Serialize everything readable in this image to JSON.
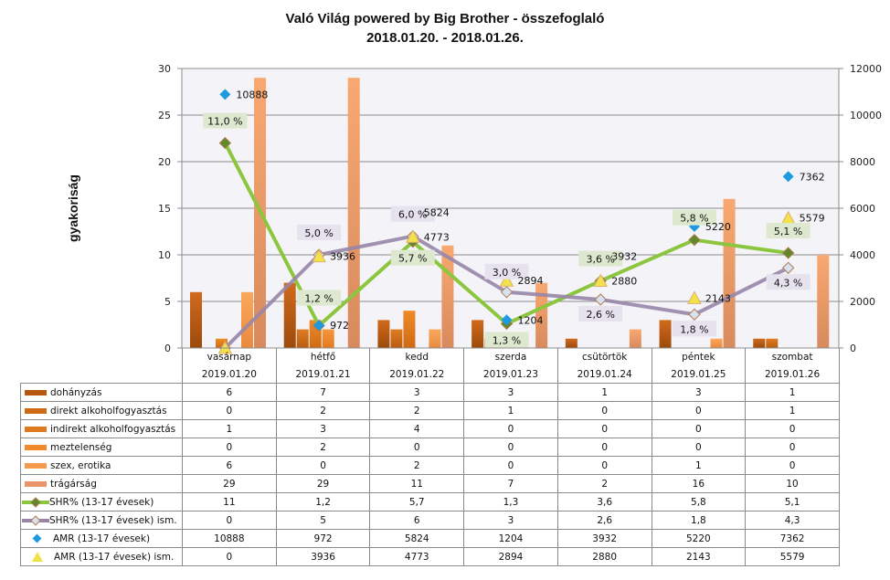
{
  "chart_data": {
    "type": "bar",
    "title": [
      "Való Világ powered by Big Brother - összefoglaló",
      "2018.01.20. - 2018.01.26."
    ],
    "ylabel": "gyakoriság",
    "ylim": [
      0,
      30
    ],
    "y_ticks": [
      0,
      5,
      10,
      15,
      20,
      25,
      30
    ],
    "y2lim": [
      0,
      12000
    ],
    "y2_ticks": [
      0,
      2000,
      4000,
      6000,
      8000,
      10000,
      12000
    ],
    "grid": true,
    "legend": "data-table-bottom",
    "categories": [
      {
        "day": "vasárnap",
        "date": "2019.01.20"
      },
      {
        "day": "hétfő",
        "date": "2019.01.21"
      },
      {
        "day": "kedd",
        "date": "2019.01.22"
      },
      {
        "day": "szerda",
        "date": "2019.01.23"
      },
      {
        "day": "csütörtök",
        "date": "2019.01.24"
      },
      {
        "day": "péntek",
        "date": "2019.01.25"
      },
      {
        "day": "szombat",
        "date": "2019.01.26"
      }
    ],
    "series": [
      {
        "name": "dohányzás",
        "kind": "bar",
        "axis": "left",
        "color": "#b5570f",
        "values": [
          6,
          7,
          3,
          3,
          1,
          3,
          1
        ],
        "display": [
          "6",
          "7",
          "3",
          "3",
          "1",
          "3",
          "1"
        ]
      },
      {
        "name": "direkt alkoholfogyasztás",
        "kind": "bar",
        "axis": "left",
        "color": "#cf6a14",
        "values": [
          0,
          2,
          2,
          1,
          0,
          0,
          1
        ],
        "display": [
          "0",
          "2",
          "2",
          "1",
          "0",
          "0",
          "1"
        ]
      },
      {
        "name": "indirekt alkoholfogyasztás",
        "kind": "bar",
        "axis": "left",
        "color": "#e07a1e",
        "values": [
          1,
          3,
          4,
          0,
          0,
          0,
          0
        ],
        "display": [
          "1",
          "3",
          "4",
          "0",
          "0",
          "0",
          "0"
        ]
      },
      {
        "name": "meztelenség",
        "kind": "bar",
        "axis": "left",
        "color": "#f08a2a",
        "values": [
          0,
          2,
          0,
          0,
          0,
          0,
          0
        ],
        "display": [
          "0",
          "2",
          "0",
          "0",
          "0",
          "0",
          "0"
        ]
      },
      {
        "name": "szex, erotika",
        "kind": "bar",
        "axis": "left",
        "color": "#f59a4c",
        "values": [
          6,
          0,
          2,
          0,
          0,
          1,
          0
        ],
        "display": [
          "6",
          "0",
          "2",
          "0",
          "0",
          "1",
          "0"
        ]
      },
      {
        "name": "trágárság",
        "kind": "bar",
        "axis": "left",
        "color": "#e8956a",
        "values": [
          29,
          29,
          11,
          7,
          2,
          16,
          10
        ],
        "display": [
          "29",
          "29",
          "11",
          "7",
          "2",
          "16",
          "10"
        ]
      },
      {
        "name": "SHR% (13-17 évesek)",
        "kind": "line",
        "axis": "right-pct",
        "color": "#8cc63f",
        "marker_color": "#5f8a2c",
        "values": [
          11,
          1.2,
          5.7,
          1.3,
          3.6,
          5.8,
          5.1
        ],
        "display": [
          "11",
          "1,2",
          "5,7",
          "1,3",
          "3,6",
          "5,8",
          "5,1"
        ],
        "labels": [
          "11,0 %",
          "1,2 %",
          "5,7 %",
          "1,3 %",
          "3,6 %",
          "5,8 %",
          "5,1 %"
        ]
      },
      {
        "name": "SHR% (13-17 évesek) ism.",
        "kind": "line",
        "axis": "right-pct",
        "color": "#9886a8",
        "marker_color": "#d6e2f0",
        "values": [
          0,
          5,
          6,
          3,
          2.6,
          1.8,
          4.3
        ],
        "display": [
          "0",
          "5",
          "6",
          "3",
          "2,6",
          "1,8",
          "4,3"
        ],
        "labels": [
          "",
          "5,0 %",
          "6,0 %",
          "3,0 %",
          "2,6 %",
          "1,8 %",
          "4,3 %"
        ]
      },
      {
        "name": "AMR (13-17 évesek)",
        "kind": "scatter",
        "axis": "right",
        "color": "#1e9be0",
        "marker": "diamond",
        "values": [
          10888,
          972,
          5824,
          1204,
          3932,
          5220,
          7362
        ],
        "display": [
          "10888",
          "972",
          "5824",
          "1204",
          "3932",
          "5220",
          "7362"
        ]
      },
      {
        "name": "AMR (13-17 évesek) ism.",
        "kind": "scatter",
        "axis": "right",
        "color": "#f2e24a",
        "marker": "triangle",
        "values": [
          0,
          3936,
          4773,
          2894,
          2880,
          2143,
          5579
        ],
        "display": [
          "0",
          "3936",
          "4773",
          "2894",
          "2880",
          "2143",
          "5579"
        ]
      }
    ]
  }
}
